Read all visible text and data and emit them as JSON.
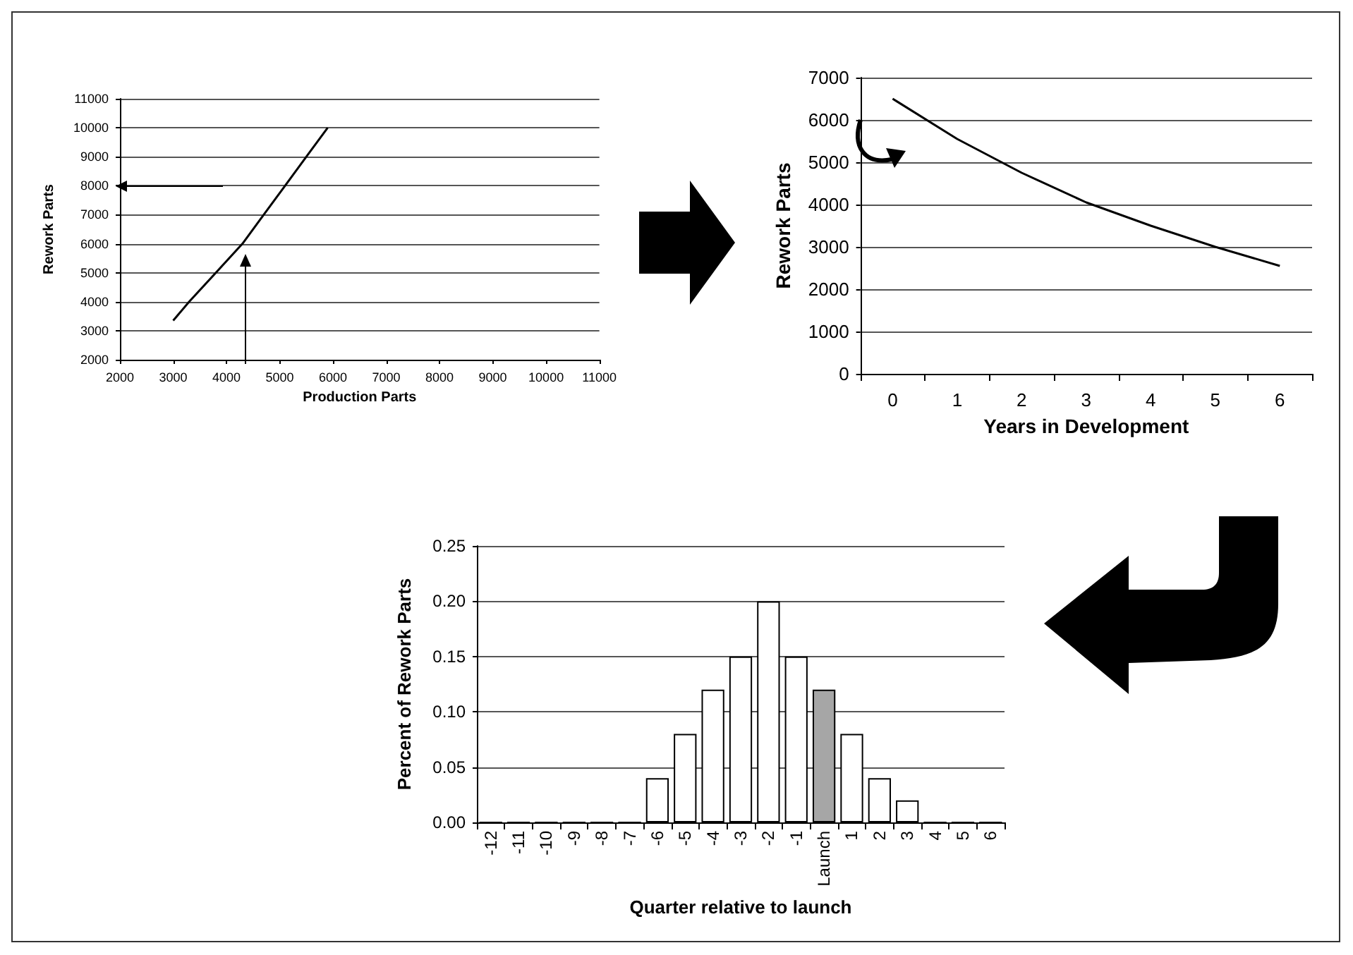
{
  "chart_data": [
    {
      "type": "line",
      "xlabel": "Production Parts",
      "ylabel": "Rework Parts",
      "x": [
        3000,
        3300,
        3800,
        4300,
        4700,
        5100,
        5500,
        5900
      ],
      "values": [
        3350,
        4000,
        5000,
        6000,
        7000,
        8000,
        9000,
        10000
      ],
      "color": "#000000",
      "xlim": [
        2000,
        11000
      ],
      "xticks": [
        2000,
        3000,
        4000,
        5000,
        6000,
        7000,
        8000,
        9000,
        10000,
        11000
      ],
      "ylim": [
        2000,
        11000
      ],
      "yticks": [
        2000,
        3000,
        4000,
        5000,
        6000,
        7000,
        8000,
        9000,
        10000,
        11000
      ],
      "grid": "y",
      "marker": "none"
    },
    {
      "type": "line",
      "xlabel": "Years in Development",
      "ylabel": "Rework Parts",
      "categories": [
        "0",
        "1",
        "2",
        "3",
        "4",
        "5",
        "6"
      ],
      "values": [
        6500,
        5550,
        4750,
        4050,
        3500,
        3000,
        2550
      ],
      "color": "#000000",
      "ylim": [
        0,
        7000
      ],
      "yticks": [
        0,
        1000,
        2000,
        3000,
        4000,
        5000,
        6000,
        7000
      ],
      "grid": "y",
      "marker": "none"
    },
    {
      "type": "bar",
      "xlabel": "Quarter relative to launch",
      "ylabel": "Percent of Rework Parts",
      "categories": [
        "-12",
        "-11",
        "-10",
        "-9",
        "-8",
        "-7",
        "-6",
        "-5",
        "-4",
        "-3",
        "-2",
        "-1",
        "Launch",
        "1",
        "2",
        "3",
        "4",
        "5",
        "6"
      ],
      "values": [
        0,
        0,
        0,
        0,
        0,
        0,
        0.04,
        0.08,
        0.12,
        0.15,
        0.2,
        0.15,
        0.12,
        0.08,
        0.04,
        0.02,
        0,
        0,
        0
      ],
      "colors": [
        "#ffffff",
        "#ffffff",
        "#ffffff",
        "#ffffff",
        "#ffffff",
        "#ffffff",
        "#ffffff",
        "#ffffff",
        "#ffffff",
        "#ffffff",
        "#ffffff",
        "#ffffff",
        "#a6a6a6",
        "#ffffff",
        "#ffffff",
        "#ffffff",
        "#ffffff",
        "#ffffff",
        "#ffffff"
      ],
      "ylim": [
        0,
        0.25
      ],
      "yticks": [
        {
          "value": 0,
          "label": "0.00"
        },
        {
          "value": 0.05,
          "label": "0.05"
        },
        {
          "value": 0.1,
          "label": "0.10"
        },
        {
          "value": 0.15,
          "label": "0.15"
        },
        {
          "value": 0.2,
          "label": "0.20"
        },
        {
          "value": 0.25,
          "label": "0.25"
        }
      ],
      "grid": "y"
    }
  ]
}
